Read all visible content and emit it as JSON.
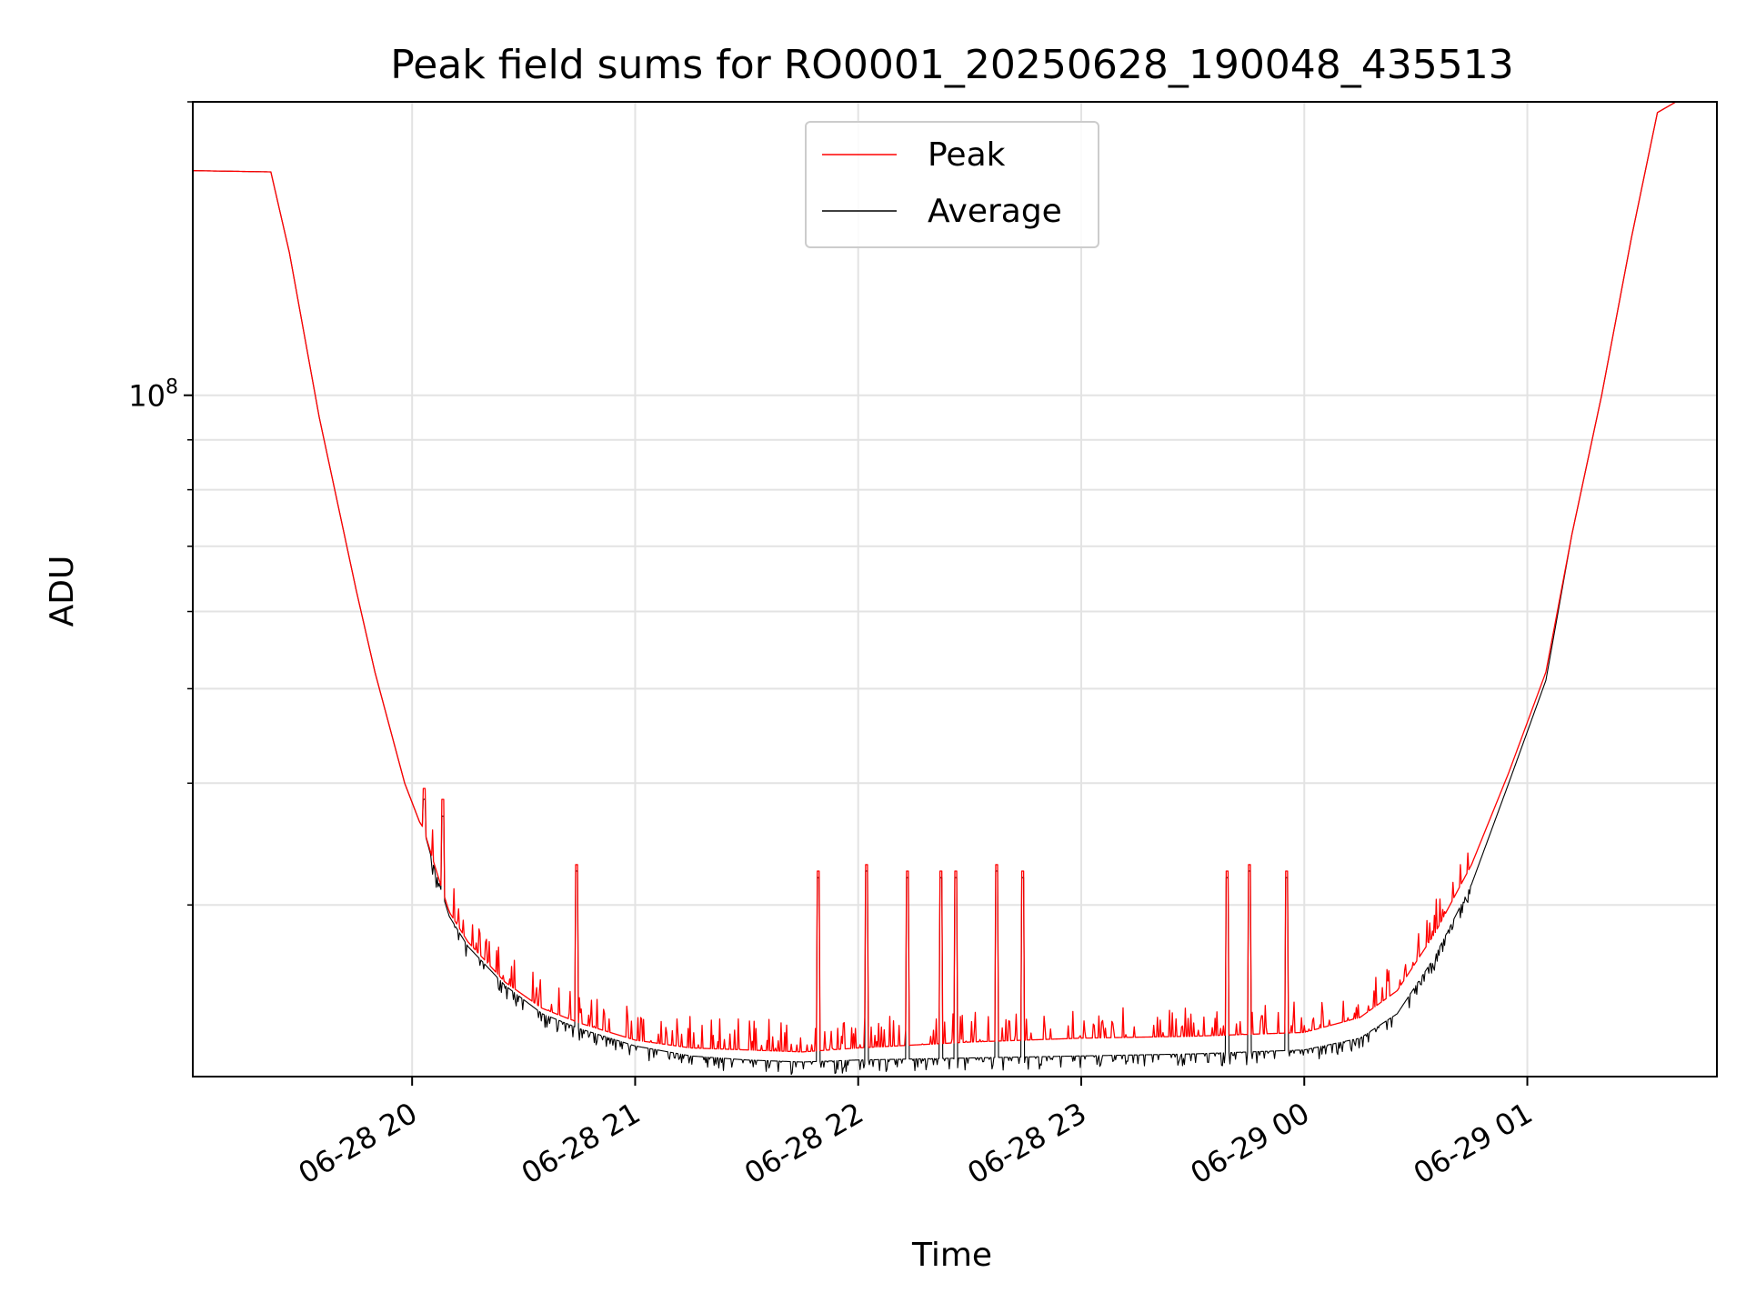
{
  "chart_data": {
    "type": "line",
    "title": "Peak field sums for RO0001_20250628_190048_435513",
    "xlabel": "Time",
    "ylabel": "ADU",
    "x_scale": "time",
    "y_scale": "log",
    "xlim": [
      "2025-06-28 19:01",
      "2025-06-29 01:51"
    ],
    "ylim": [
      20000000,
      200000000
    ],
    "x_ticks": [
      {
        "t": "2025-06-28 20:00",
        "label": "06-28 20"
      },
      {
        "t": "2025-06-28 21:00",
        "label": "06-28 21"
      },
      {
        "t": "2025-06-28 22:00",
        "label": "06-28 22"
      },
      {
        "t": "2025-06-28 23:00",
        "label": "06-28 23"
      },
      {
        "t": "2025-06-29 00:00",
        "label": "06-29 00"
      },
      {
        "t": "2025-06-29 01:00",
        "label": "06-29 01"
      }
    ],
    "y_major_ticks": [
      {
        "value": 100000000,
        "label_base": "10",
        "label_exp": "8"
      }
    ],
    "y_minor_ticks": [
      30000000,
      40000000,
      50000000,
      60000000,
      70000000,
      80000000,
      90000000,
      200000000
    ],
    "grid": true,
    "legend_position": "top-center",
    "series": [
      {
        "name": "Peak",
        "color": "#ff0000",
        "points": [
          [
            "2025-06-28 19:01",
            170000000
          ],
          [
            "2025-06-28 19:22",
            169500000
          ],
          [
            "2025-06-28 19:27",
            140000000
          ],
          [
            "2025-06-28 19:35",
            95000000
          ],
          [
            "2025-06-28 19:45",
            63000000
          ],
          [
            "2025-06-28 19:50",
            52000000
          ],
          [
            "2025-06-28 19:58",
            40000000
          ],
          [
            "2025-06-28 20:02",
            36500000
          ],
          [
            "2025-06-28 20:03",
            36000000
          ],
          [
            "2025-06-28 20:06",
            33000000
          ],
          [
            "2025-06-28 20:10",
            29500000
          ],
          [
            "2025-06-28 20:15",
            27500000
          ],
          [
            "2025-06-28 20:25",
            25000000
          ],
          [
            "2025-06-28 20:35",
            23500000
          ],
          [
            "2025-06-28 20:45",
            22700000
          ],
          [
            "2025-06-28 21:00",
            21800000
          ],
          [
            "2025-06-28 21:15",
            21400000
          ],
          [
            "2025-06-28 21:30",
            21300000
          ],
          [
            "2025-06-28 21:45",
            21200000
          ],
          [
            "2025-06-28 22:00",
            21400000
          ],
          [
            "2025-06-28 22:30",
            21700000
          ],
          [
            "2025-06-28 23:00",
            21900000
          ],
          [
            "2025-06-28 23:30",
            22000000
          ],
          [
            "2025-06-29 00:00",
            22200000
          ],
          [
            "2025-06-29 00:15",
            23000000
          ],
          [
            "2025-06-29 00:25",
            24500000
          ],
          [
            "2025-06-29 00:35",
            28000000
          ],
          [
            "2025-06-29 00:45",
            33000000
          ],
          [
            "2025-06-29 00:55",
            41000000
          ],
          [
            "2025-06-29 01:05",
            52000000
          ],
          [
            "2025-06-29 01:12",
            72000000
          ],
          [
            "2025-06-29 01:20",
            100000000
          ],
          [
            "2025-06-29 01:28",
            145000000
          ],
          [
            "2025-06-29 01:35",
            195000000
          ],
          [
            "2025-06-29 01:40",
            200000000
          ],
          [
            "2025-06-29 01:51",
            200000000
          ]
        ]
      },
      {
        "name": "Average",
        "color": "#000000",
        "points": [
          [
            "2025-06-28 19:01",
            170000000
          ],
          [
            "2025-06-28 19:22",
            169500000
          ],
          [
            "2025-06-28 19:27",
            140000000
          ],
          [
            "2025-06-28 19:35",
            95000000
          ],
          [
            "2025-06-28 19:45",
            63000000
          ],
          [
            "2025-06-28 19:50",
            52000000
          ],
          [
            "2025-06-28 19:58",
            40000000
          ],
          [
            "2025-06-28 20:02",
            36500000
          ],
          [
            "2025-06-28 20:03",
            36000000
          ],
          [
            "2025-06-28 20:06",
            32700000
          ],
          [
            "2025-06-28 20:10",
            29200000
          ],
          [
            "2025-06-28 20:15",
            27200000
          ],
          [
            "2025-06-28 20:25",
            24800000
          ],
          [
            "2025-06-28 20:35",
            23200000
          ],
          [
            "2025-06-28 20:45",
            22400000
          ],
          [
            "2025-06-28 21:00",
            21500000
          ],
          [
            "2025-06-28 21:15",
            21000000
          ],
          [
            "2025-06-28 21:30",
            20800000
          ],
          [
            "2025-06-28 21:45",
            20700000
          ],
          [
            "2025-06-28 22:00",
            20800000
          ],
          [
            "2025-06-28 22:30",
            20900000
          ],
          [
            "2025-06-28 23:00",
            21000000
          ],
          [
            "2025-06-28 23:30",
            21100000
          ],
          [
            "2025-06-29 00:00",
            21300000
          ],
          [
            "2025-06-29 00:15",
            21900000
          ],
          [
            "2025-06-29 00:25",
            23200000
          ],
          [
            "2025-06-29 00:35",
            26500000
          ],
          [
            "2025-06-29 00:45",
            31500000
          ],
          [
            "2025-06-29 00:55",
            40000000
          ],
          [
            "2025-06-29 01:05",
            51000000
          ],
          [
            "2025-06-29 01:12",
            72000000
          ],
          [
            "2025-06-29 01:20",
            100000000
          ],
          [
            "2025-06-29 01:28",
            145000000
          ],
          [
            "2025-06-29 01:35",
            195000000
          ],
          [
            "2025-06-29 01:40",
            200000000
          ],
          [
            "2025-06-29 01:51",
            200000000
          ]
        ]
      }
    ],
    "spikes": [
      {
        "t": "2025-06-28 20:03",
        "peak": 39500000,
        "average": 38500000
      },
      {
        "t": "2025-06-28 20:08",
        "peak": 38500000,
        "average": 37000000
      },
      {
        "t": "2025-06-28 20:44",
        "peak": 33000000,
        "average": 32500000
      },
      {
        "t": "2025-06-28 21:49",
        "peak": 32500000,
        "average": 32000000
      },
      {
        "t": "2025-06-28 22:02",
        "peak": 33000000,
        "average": 32500000
      },
      {
        "t": "2025-06-28 22:13",
        "peak": 32500000,
        "average": 32000000
      },
      {
        "t": "2025-06-28 22:22",
        "peak": 32500000,
        "average": 32000000
      },
      {
        "t": "2025-06-28 22:26",
        "peak": 32500000,
        "average": 32000000
      },
      {
        "t": "2025-06-28 22:37",
        "peak": 33000000,
        "average": 32500000
      },
      {
        "t": "2025-06-28 22:44",
        "peak": 32500000,
        "average": 32000000
      },
      {
        "t": "2025-06-28 23:39",
        "peak": 32500000,
        "average": 32000000
      },
      {
        "t": "2025-06-28 23:45",
        "peak": 33000000,
        "average": 32500000
      },
      {
        "t": "2025-06-28 23:55",
        "peak": 32500000,
        "average": 32000000
      }
    ]
  }
}
